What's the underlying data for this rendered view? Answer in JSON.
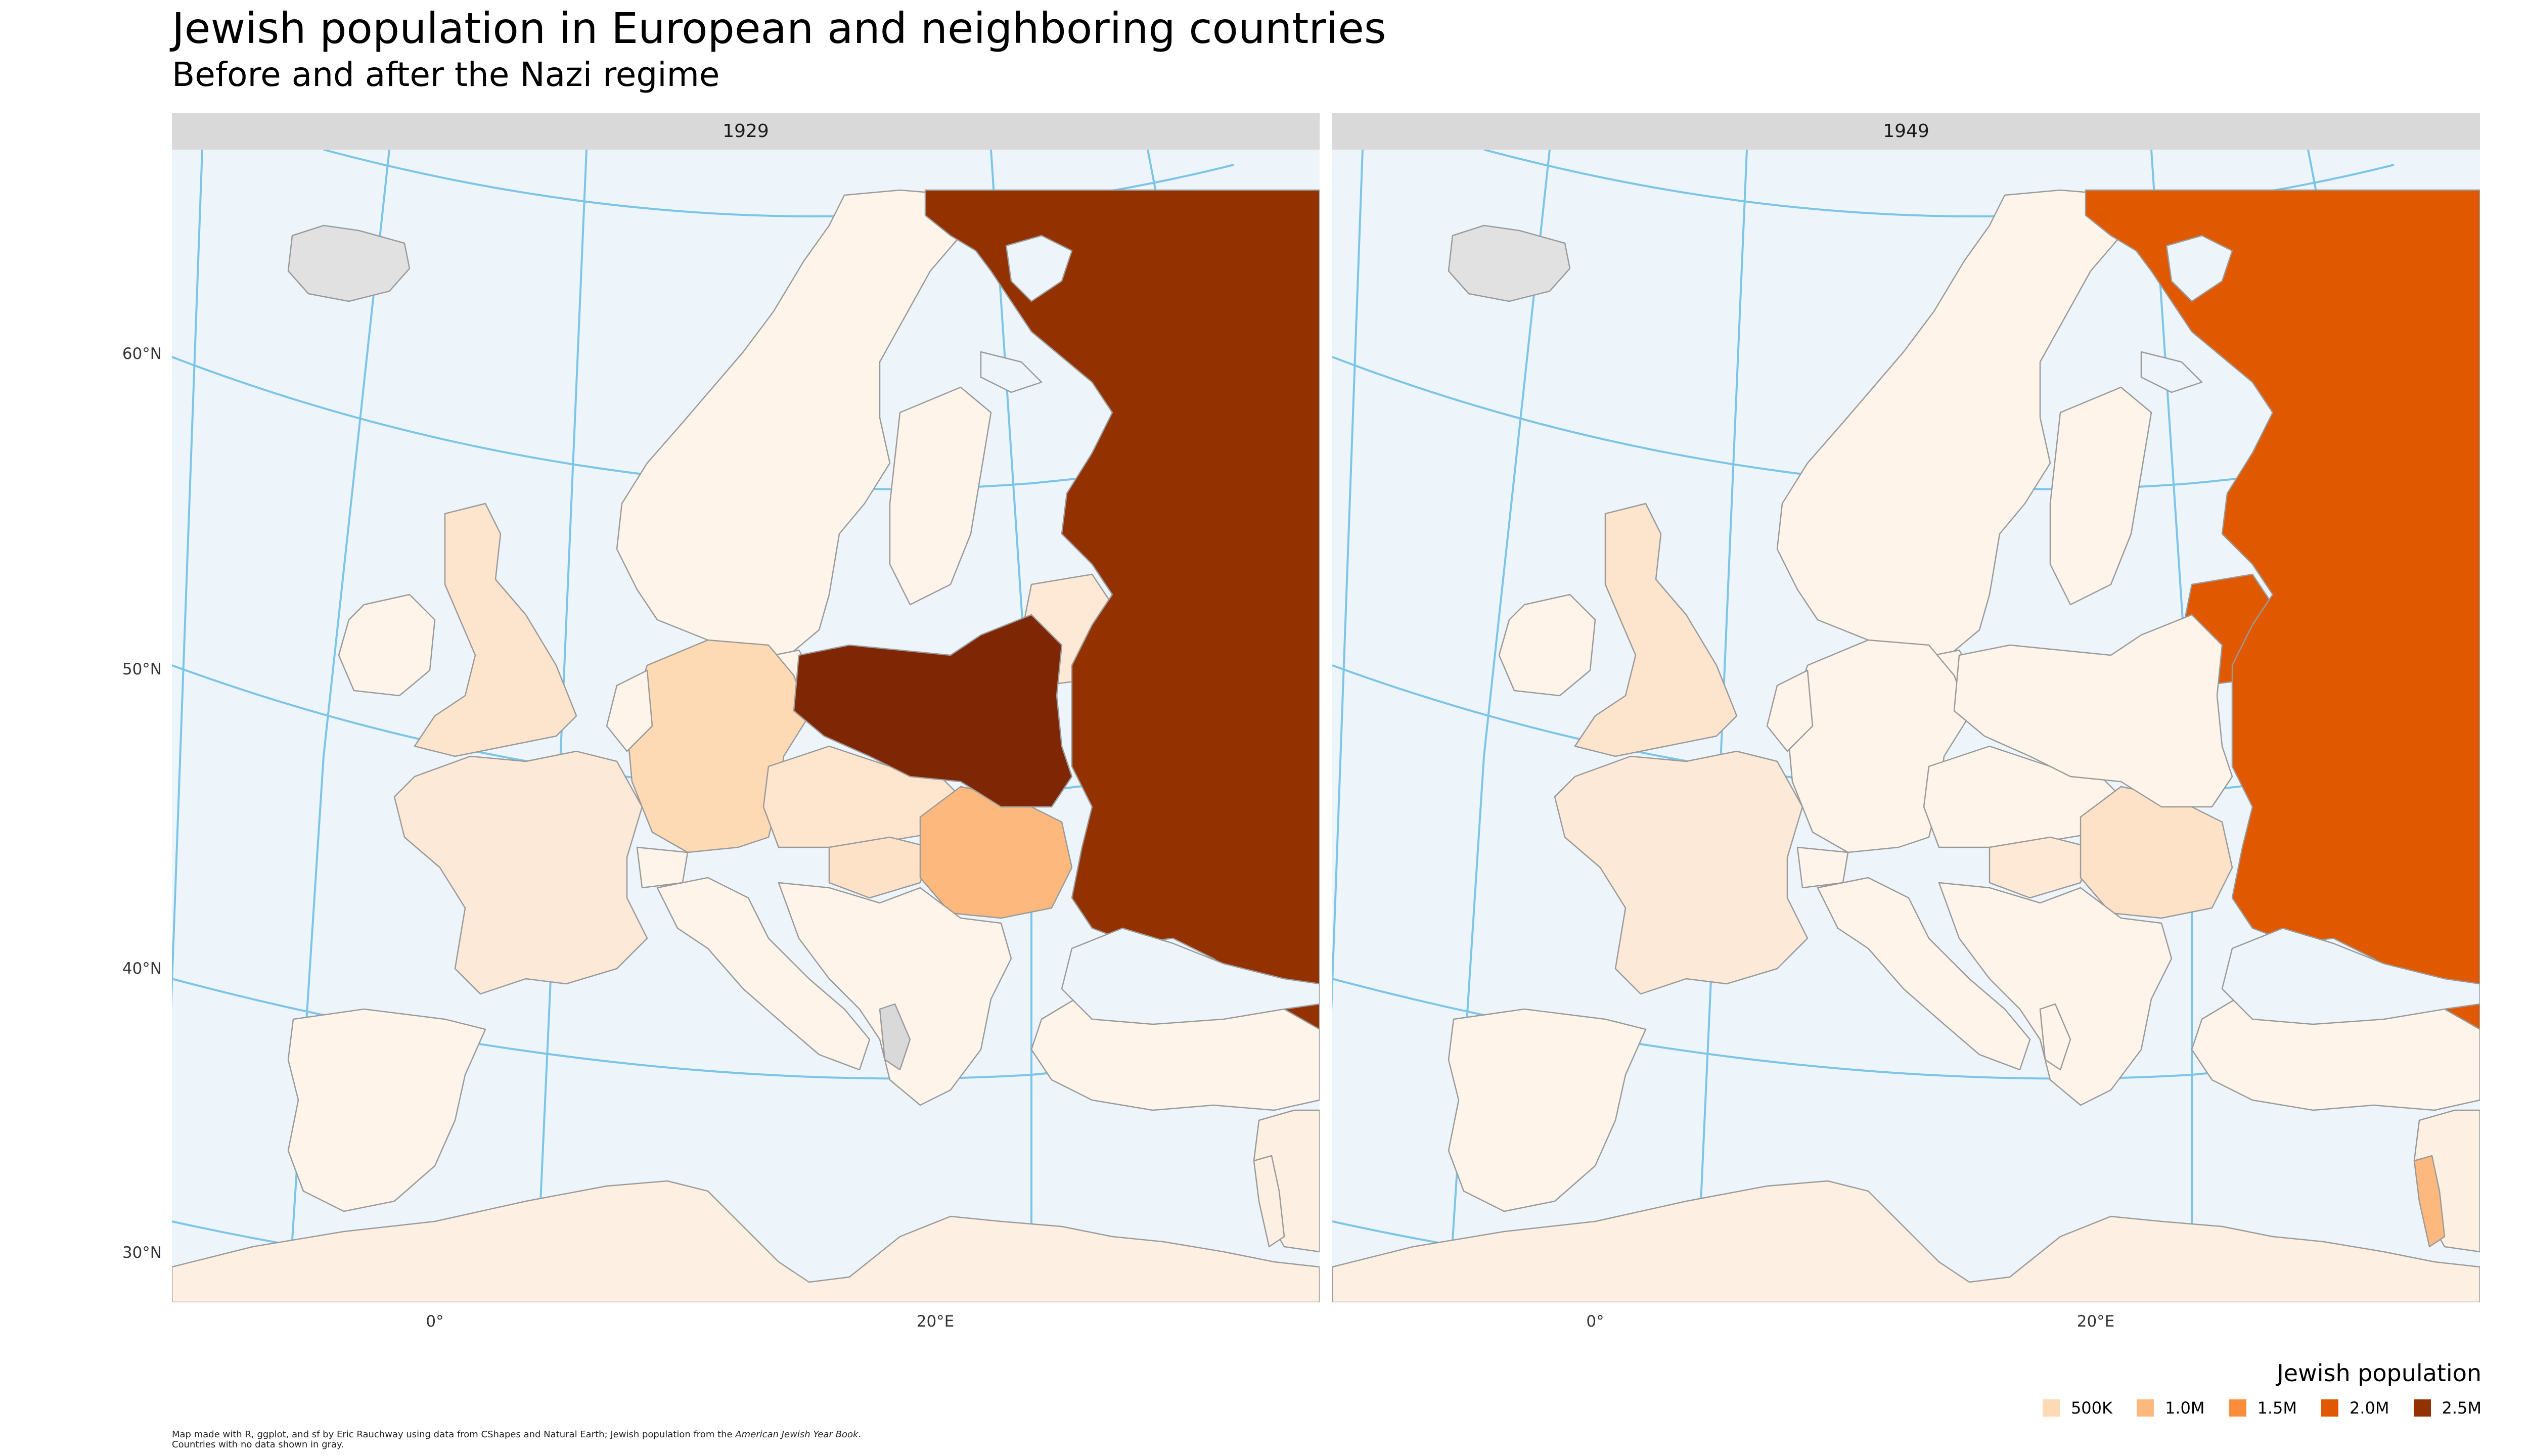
{
  "title": "Jewish population in European and neighboring countries",
  "subtitle": "Before and after the Nazi regime",
  "panels": [
    {
      "label": "1929",
      "colors": {
        "russia": "#933200",
        "poland": "#7f2704",
        "germany": "#fdd9b4",
        "romania": "#fdb97d",
        "czech": "#fee6ce",
        "hungary": "#fee2c8",
        "baltics": "#fee9d6",
        "france": "#fde9d7",
        "uk": "#fde4cd",
        "default": "#fef4ea",
        "north_africa": "#fdefe1",
        "middle_east": "#fdf0e3",
        "palestine": "#fdf0e3",
        "iceland": "#e1e1e1",
        "albania": "#d9d9d9"
      }
    },
    {
      "label": "1949",
      "colors": {
        "russia": "#e05901",
        "poland": "#fef4ea",
        "germany": "#fef4ea",
        "romania": "#fee2c8",
        "czech": "#fef4ea",
        "hungary": "#fee9d6",
        "baltics": "#e05901",
        "france": "#fde9d7",
        "uk": "#fde4cd",
        "default": "#fef4ea",
        "north_africa": "#fdefe1",
        "middle_east": "#fdf0e3",
        "palestine": "#fdb97d",
        "iceland": "#e1e1e1",
        "albania": "#fef4ea"
      }
    }
  ],
  "axes": {
    "lat_labels": [
      "60°N",
      "50°N",
      "40°N",
      "30°N"
    ],
    "lon_labels": [
      "0°",
      "20°E"
    ]
  },
  "legend": {
    "title": "Jewish population",
    "items": [
      {
        "label": "500K",
        "color": "#fdd9b4"
      },
      {
        "label": "1.0M",
        "color": "#fdb97d"
      },
      {
        "label": "1.5M",
        "color": "#fd8d3c"
      },
      {
        "label": "2.0M",
        "color": "#e05901"
      },
      {
        "label": "2.5M",
        "color": "#933200"
      }
    ]
  },
  "caption": {
    "line1_prefix": "Map made with R, ggplot, and sf by Eric Rauchway using data from CShapes and Natural Earth; Jewish population from the ",
    "line1_source": "American Jewish Year Book",
    "line1_suffix": ".",
    "line2": "Countries with no data shown in gray."
  },
  "map_colors": {
    "sea": "#edf5fb",
    "graticule": "#7cc4e8",
    "border": "#9a9a9a"
  }
}
